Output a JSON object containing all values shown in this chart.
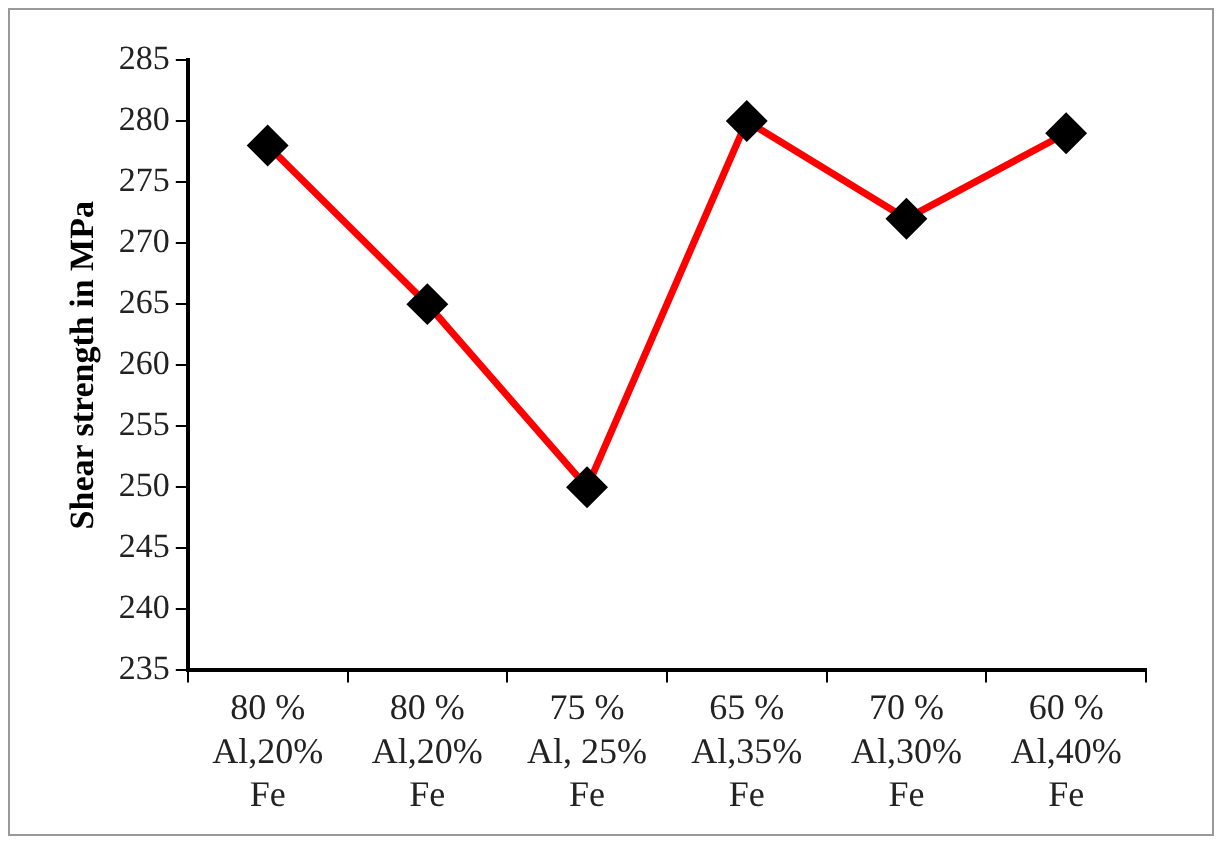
{
  "chart_data": {
    "type": "line",
    "ylabel": "Shear strength in MPa",
    "categories": [
      "80 %\nAl,20%\nFe",
      "80 %\nAl,20%\nFe",
      "75 %\nAl, 25%\nFe",
      "65 %\nAl,35%\nFe",
      "70 %\nAl,30%\nFe",
      "60 %\nAl,40%\nFe"
    ],
    "series": [
      {
        "color": "#ff0000",
        "values": [
          278,
          265,
          250,
          280,
          272,
          279
        ]
      }
    ],
    "ylim": [
      235,
      285
    ],
    "yticks": [
      235,
      240,
      245,
      250,
      255,
      260,
      265,
      270,
      275,
      280,
      285
    ],
    "grid": false,
    "legend": false,
    "marker": "diamond",
    "line_style": "solid"
  }
}
